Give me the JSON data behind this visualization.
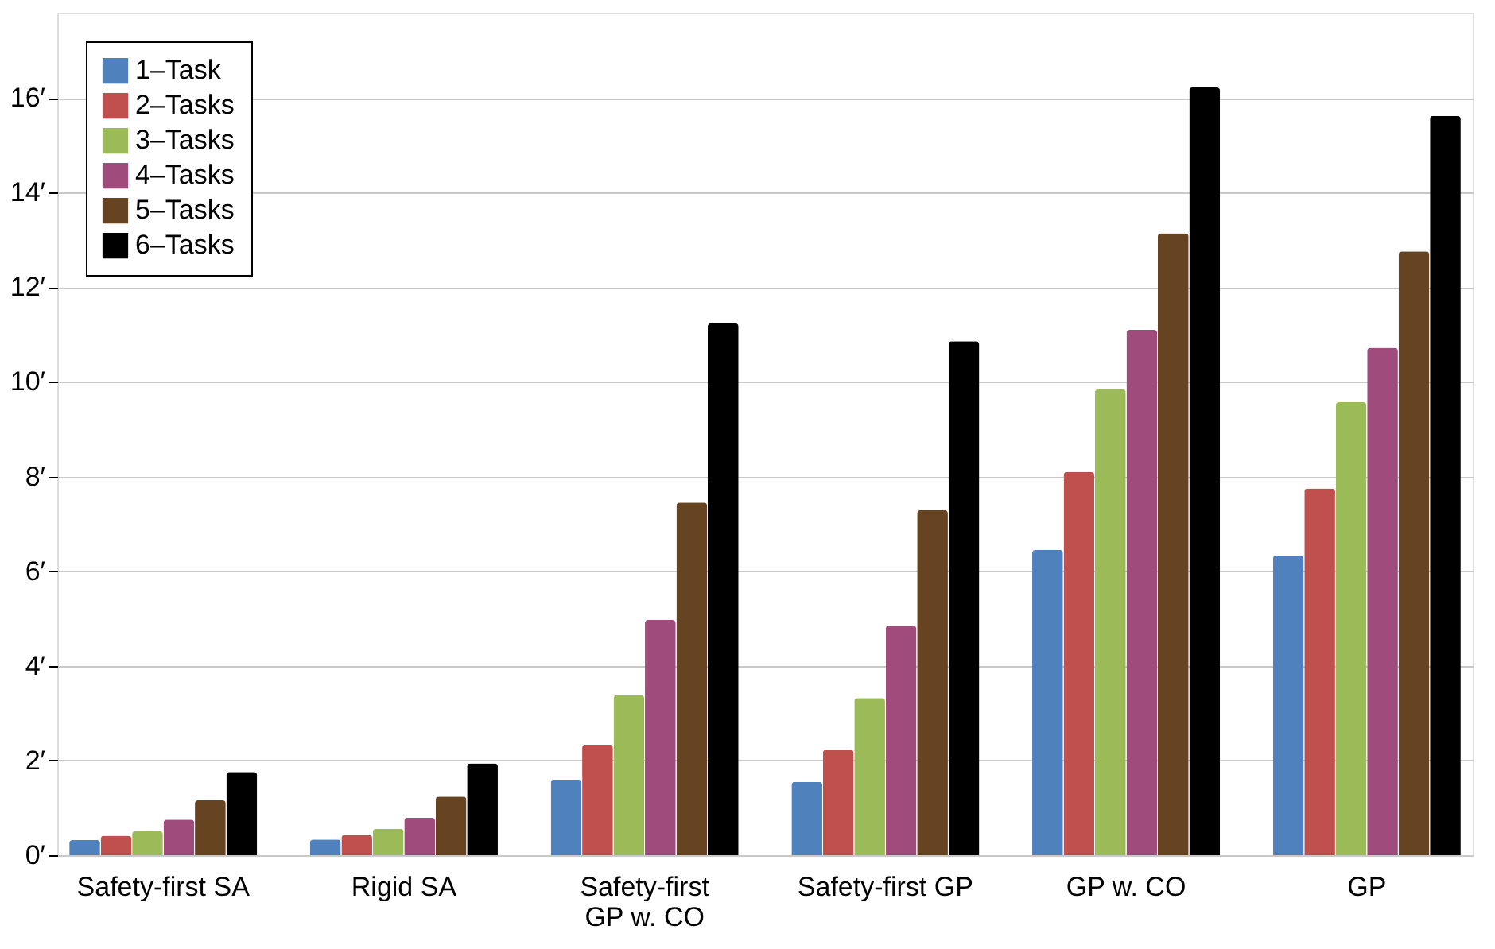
{
  "chart_data": {
    "type": "bar",
    "categories": [
      "Safety-first SA",
      "Rigid SA",
      "Safety-first GP w.  CO",
      "Safety-first GP",
      "GP w.  CO",
      "GP"
    ],
    "series": [
      {
        "name": "1–Task",
        "color": "#4f81bd",
        "values": [
          0.32,
          0.33,
          1.6,
          1.55,
          6.45,
          6.33
        ]
      },
      {
        "name": "2–Tasks",
        "color": "#c0504d",
        "values": [
          0.41,
          0.43,
          2.34,
          2.23,
          8.1,
          7.75
        ]
      },
      {
        "name": "3–Tasks",
        "color": "#9bbb59",
        "values": [
          0.51,
          0.56,
          3.38,
          3.32,
          9.85,
          9.57
        ]
      },
      {
        "name": "4–Tasks",
        "color": "#9f4c7c",
        "values": [
          0.75,
          0.79,
          4.97,
          4.85,
          11.1,
          10.72
        ]
      },
      {
        "name": "5–Tasks",
        "color": "#664321",
        "values": [
          1.16,
          1.24,
          7.45,
          7.29,
          13.14,
          12.76
        ]
      },
      {
        "name": "6–Tasks",
        "color": "#000000",
        "values": [
          1.76,
          1.94,
          11.24,
          10.86,
          16.22,
          15.62
        ]
      }
    ],
    "ylim": [
      0,
      17.8
    ],
    "yticks": [
      {
        "value": 0,
        "label": "0′"
      },
      {
        "value": 2,
        "label": "2′"
      },
      {
        "value": 4,
        "label": "4′"
      },
      {
        "value": 6,
        "label": "6′"
      },
      {
        "value": 8,
        "label": "8′"
      },
      {
        "value": 10,
        "label": "10′"
      },
      {
        "value": 12,
        "label": "12′"
      },
      {
        "value": 14,
        "label": "14′"
      },
      {
        "value": 16,
        "label": "16′"
      }
    ],
    "grid": "y",
    "legend": "top left"
  }
}
